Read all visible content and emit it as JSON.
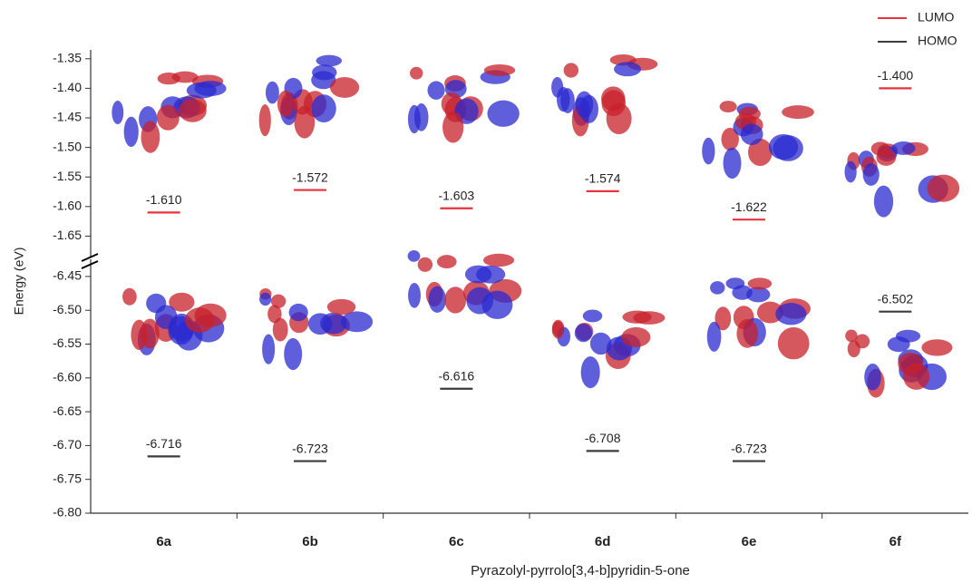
{
  "chart_data": {
    "type": "scatter",
    "marker": "dash",
    "ylabel": "Energy (eV)",
    "xlabel": "Pyrazolyl-pyrrolo[3,4-b]pyridin-5-one",
    "categories": [
      "6a",
      "6b",
      "6c",
      "6d",
      "6e",
      "6f"
    ],
    "segments": [
      {
        "ylim": [
          -1.335,
          -1.68
        ],
        "yticks": [
          -1.35,
          {
            "value": -1.4,
            "label": "-1.40"
          },
          -1.45,
          {
            "value": -1.5,
            "label": "-1.50"
          },
          -1.55,
          {
            "value": -1.6,
            "label": "-1.60"
          },
          -1.65
        ]
      },
      {
        "ylim": [
          -6.43,
          -6.8
        ],
        "yticks": [
          -6.45,
          {
            "value": -6.5,
            "label": "-6.50"
          },
          -6.55,
          {
            "value": -6.6,
            "label": "-6.60"
          },
          -6.65,
          {
            "value": -6.7,
            "label": "-6.70"
          },
          -6.75,
          {
            "value": -6.8,
            "label": "-6.80"
          }
        ]
      }
    ],
    "series": [
      {
        "name": "LUMO",
        "color": "#e8323c",
        "values": [
          -1.61,
          -1.572,
          -1.603,
          -1.574,
          -1.622,
          -1.4
        ],
        "value_labels": [
          "-1.610",
          "-1.572",
          "-1.603",
          "-1.574",
          "-1.622",
          "-1.400"
        ]
      },
      {
        "name": "HOMO",
        "color": "#3c3c3c",
        "values": [
          -6.716,
          -6.723,
          -6.616,
          -6.708,
          -6.723,
          -6.502
        ],
        "value_labels": [
          "-6.716",
          "-6.723",
          "-6.616",
          "-6.708",
          "-6.723",
          "-6.502"
        ]
      }
    ],
    "legend": "upper right"
  }
}
